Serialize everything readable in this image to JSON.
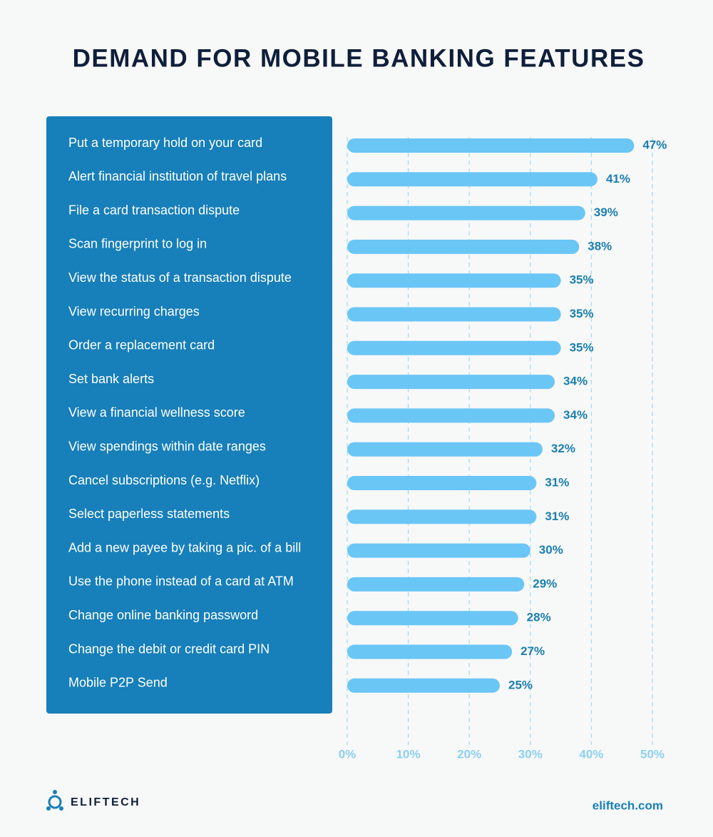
{
  "chart_data": {
    "type": "barh",
    "title": "DEMAND FOR MOBILE BANKING FEATURES",
    "categories": [
      "Put a temporary hold on your card",
      "Alert financial institution of travel plans",
      "File a card transaction dispute",
      "Scan fingerprint to log in",
      "View the status of a transaction dispute",
      "View recurring charges",
      "Order a replacement card",
      "Set bank alerts",
      "View a financial wellness score",
      "View spendings within date ranges",
      "Cancel subscriptions (e.g. Netflix)",
      "Select paperless statements",
      "Add a new payee by taking a pic. of a bill",
      "Use the phone instead of a card at ATM",
      "Change online banking password",
      "Change the debit or credit card PIN",
      "Mobile P2P Send"
    ],
    "values": [
      47,
      41,
      39,
      38,
      35,
      35,
      35,
      34,
      34,
      32,
      31,
      31,
      30,
      29,
      28,
      27,
      25
    ],
    "value_labels": [
      "47%",
      "41%",
      "39%",
      "38%",
      "35%",
      "35%",
      "35%",
      "34%",
      "34%",
      "32%",
      "31%",
      "31%",
      "30%",
      "29%",
      "28%",
      "27%",
      "25%"
    ],
    "color": "#6ac6f5",
    "xlim": [
      0,
      50
    ],
    "xticks": [
      {
        "value": 0,
        "label": "0%"
      },
      {
        "value": 10,
        "label": "10%"
      },
      {
        "value": 20,
        "label": "20%"
      },
      {
        "value": 30,
        "label": "30%"
      },
      {
        "value": 40,
        "label": "40%"
      },
      {
        "value": 50,
        "label": "50%"
      }
    ],
    "grid": true
  },
  "footer": {
    "brand": "ELIFTECH",
    "url": "eliftech.com"
  }
}
